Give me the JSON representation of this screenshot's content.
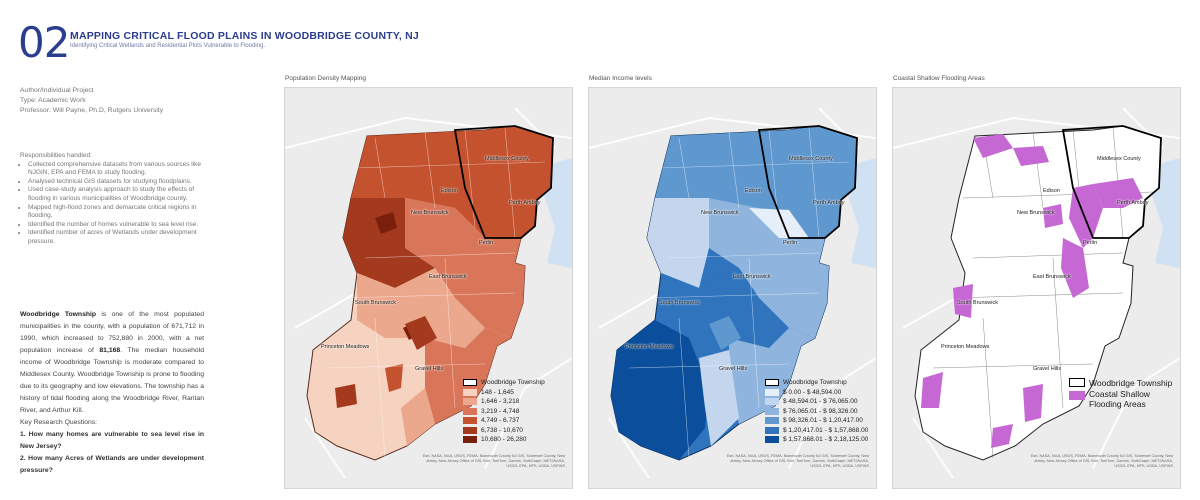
{
  "header": {
    "number": "02",
    "title": "MAPPING CRITICAL FLOOD PLAINS IN WOODBRIDGE COUNTY, NJ",
    "subtitle": "Identifying Critical Wetlands and Residential Plots Vulnerable to Flooding."
  },
  "meta": {
    "line1": "Author/Individual Project",
    "line2": "Type: Academic Work",
    "line3": "Professor: Will Payne, Ph.D, Rutgers University"
  },
  "responsibilities": {
    "heading": "Responsibilities handled:",
    "items": [
      "Collected comprehensive datasets from various sources like NJGIN, EPA and FEMA to study flooding.",
      "Analysed technical GIS datasets for studying floodplains.",
      "Used case-study analysis approach to study the effects of flooding in various municipalities of Woodbridge county.",
      "Mapped high-flood zones and demarcate critical regions in flooding.",
      "Identified the number of homes vulnerable to sea level rise.",
      "Identified number of acres of Wetlands under development pressure."
    ]
  },
  "description": {
    "lead": "Woodbridge Township",
    "body1": " is one of the most populated municipalities in the county, with a population of 671,712 in 1990, which increased to 752,880 in 2000, with a net population increase of ",
    "increase": "81,168",
    "body2": ". The median household income of Woodbridge Township is moderate compared to Middlesex County. Woodbridge Township is prone to flooding due to its geography and low elevations. The township has a history of tidal flooding along the Woodbridge River, Raritan River, and Arthur Kill.",
    "questions_heading": "Key Research Questions:",
    "q1": "1. How many homes are vulnerable to sea level rise in New Jersey?",
    "q2": "2. How many Acres of Wetlands are under development pressure?"
  },
  "maps": [
    {
      "label": "Population Density Mapping",
      "palette": [
        "#f6d2c0",
        "#eba88c",
        "#d9765a",
        "#c4522f",
        "#a43a1d",
        "#7a1f0c"
      ],
      "legend_title": "Woodbridge Township",
      "legend": [
        "148 - 1,645",
        "1,646 - 3,218",
        "3,219 - 4,748",
        "4,749 - 6,737",
        "6,738 - 10,670",
        "10,680 - 26,280"
      ]
    },
    {
      "label": "Median Income levels",
      "palette": [
        "#e6eef9",
        "#c3d6ee",
        "#8fb5de",
        "#5f97cf",
        "#2f74bd",
        "#0b4f9c"
      ],
      "legend_title": "Woodbridge Township",
      "legend": [
        "$ 0.00 - $ 48,594.00",
        "$ 48,594.01 - $ 76,065.00",
        "$ 76,065.01 - $ 98,326.00",
        "$ 98,326.01 - $ 1,20,417.00",
        "$ 1,20,417.01 - $ 1,57,868.00",
        "$ 1,57,868.01 - $ 2,18,125.00"
      ]
    },
    {
      "label": "Coastal Shallow Flooding Areas",
      "palette": [
        "#c668d4"
      ],
      "legend_title": "Woodbridge Township",
      "legend": [
        "Coastal Shallow Flooding Areas"
      ]
    }
  ],
  "places": {
    "middlesex": "Middlesex County",
    "edison": "Edison",
    "new_brunswick": "New Brunswick",
    "perth_amboy": "Perth Amboy",
    "perlin": "Perlin",
    "east_brunswick": "East Brunswick",
    "south_brunswick": "South Brunswick",
    "princeton": "Princeton Meadows",
    "gravel_hills": "Gravel Hills"
  },
  "attribution": "Esri, NASA, NGA, USGS, FEMA, Monmouth County NJ GIS, Somerset County, New Jersey, New Jersey Office of GIS, Esri, TomTom, Garmin, SafeGraph, METI/NASA, USGS, EPA, NPS, USDA, USFWS",
  "colors": {
    "accent": "#2b3d8f",
    "water": "#cfe1f2",
    "flood": "#c668d4"
  }
}
